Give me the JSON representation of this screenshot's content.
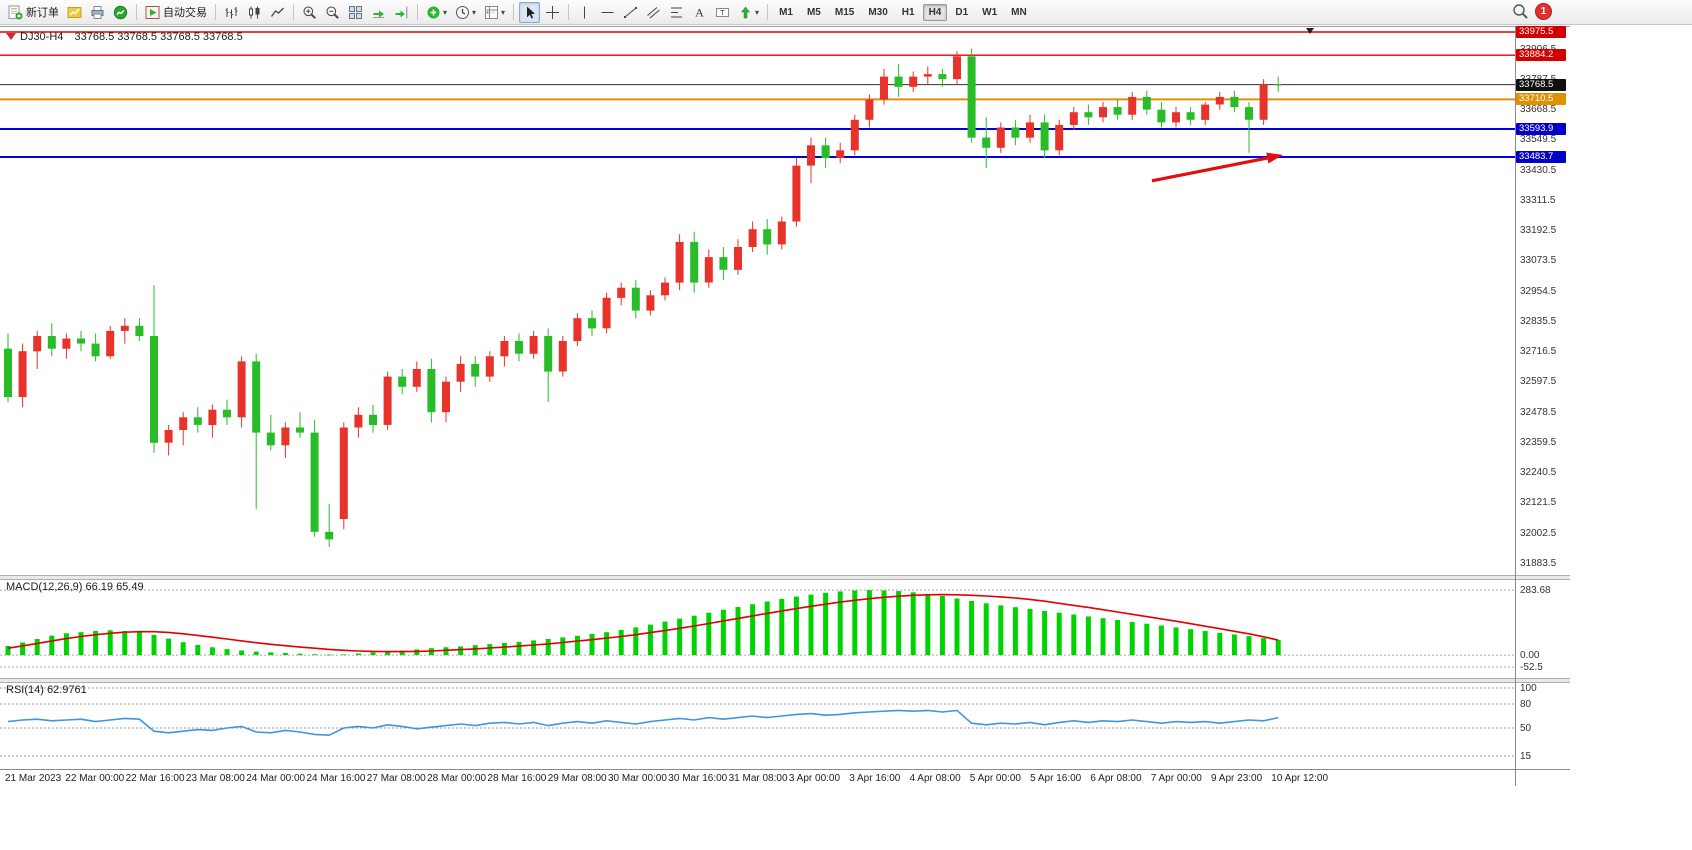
{
  "toolbar": {
    "new_order_label": "新订单",
    "autotrading_label": "自动交易",
    "timeframes": [
      "M1",
      "M5",
      "M15",
      "M30",
      "H1",
      "H4",
      "D1",
      "W1",
      "MN"
    ],
    "active_timeframe": "H4",
    "notification_count": "1"
  },
  "chart_header": {
    "symbol": "DJ30-H4",
    "ohlc": "33768.5 33768.5 33768.5 33768.5"
  },
  "price_axis": {
    "scale_labels": [
      "33906.5",
      "33787.5",
      "33668.5",
      "33549.5",
      "33430.5",
      "33311.5",
      "33192.5",
      "33073.5",
      "32954.5",
      "32835.5",
      "32716.5",
      "32597.5",
      "32478.5",
      "32359.5",
      "32240.5",
      "32121.5",
      "32002.5",
      "31883.5"
    ],
    "tagged_labels": [
      {
        "text": "33975.5",
        "bg": "#d40000"
      },
      {
        "text": "33884.2",
        "bg": "#d40000"
      },
      {
        "text": "33768.5",
        "bg": "#101010"
      },
      {
        "text": "33710.5",
        "bg": "#e09000"
      },
      {
        "text": "33593.9",
        "bg": "#0000c8"
      },
      {
        "text": "33483.7",
        "bg": "#0000c8"
      }
    ]
  },
  "macd_panel": {
    "label": "MACD(12,26,9)",
    "values": "66.19 65.49",
    "scale_labels": [
      "283.68",
      "0.00",
      "-52.5"
    ]
  },
  "rsi_panel": {
    "label": "RSI(14)",
    "value": "62.9761",
    "scale_labels": [
      "100",
      "80",
      "50",
      "15"
    ]
  },
  "time_axis": [
    "21 Mar 2023",
    "22 Mar 00:00",
    "22 Mar 16:00",
    "23 Mar 08:00",
    "24 Mar 00:00",
    "24 Mar 16:00",
    "27 Mar 08:00",
    "28 Mar 00:00",
    "28 Mar 16:00",
    "29 Mar 08:00",
    "30 Mar 00:00",
    "30 Mar 16:00",
    "31 Mar 08:00",
    "3 Apr 00:00",
    "3 Apr 16:00",
    "4 Apr 08:00",
    "5 Apr 00:00",
    "5 Apr 16:00",
    "6 Apr 08:00",
    "7 Apr 00:00",
    "9 Apr 23:00",
    "10 Apr 12:00"
  ],
  "chart_data": [
    {
      "type": "candlestick",
      "title": "DJ30 H4",
      "ylim": [
        31836,
        33999
      ],
      "colors": {
        "up": "#e8332a",
        "down": "#28bd28"
      },
      "hlines": [
        {
          "price": 33975.5,
          "color": "#e00000",
          "width": 1.4
        },
        {
          "price": 33884.2,
          "color": "#e00000",
          "width": 1.4
        },
        {
          "price": 33768.5,
          "color": "#303030",
          "width": 1
        },
        {
          "price": 33710.5,
          "color": "#e09000",
          "width": 2
        },
        {
          "price": 33593.9,
          "color": "#0000dd",
          "width": 2
        },
        {
          "price": 33483.7,
          "color": "#0000dd",
          "width": 2
        }
      ],
      "arrow": {
        "tail": [
          1152,
          33390
        ],
        "tip": [
          1283,
          33492
        ],
        "color": "#e01010"
      },
      "candles": [
        [
          32730,
          32790,
          32520,
          32540
        ],
        [
          32540,
          32750,
          32500,
          32720
        ],
        [
          32720,
          32800,
          32650,
          32780
        ],
        [
          32780,
          32830,
          32700,
          32730
        ],
        [
          32730,
          32790,
          32690,
          32770
        ],
        [
          32770,
          32800,
          32720,
          32750
        ],
        [
          32750,
          32790,
          32680,
          32700
        ],
        [
          32700,
          32820,
          32690,
          32800
        ],
        [
          32800,
          32850,
          32750,
          32820
        ],
        [
          32820,
          32850,
          32760,
          32780
        ],
        [
          32780,
          32980,
          32320,
          32360
        ],
        [
          32360,
          32430,
          32310,
          32410
        ],
        [
          32410,
          32480,
          32350,
          32460
        ],
        [
          32460,
          32500,
          32400,
          32430
        ],
        [
          32430,
          32510,
          32380,
          32490
        ],
        [
          32490,
          32530,
          32430,
          32460
        ],
        [
          32460,
          32700,
          32420,
          32680
        ],
        [
          32680,
          32710,
          32100,
          32400
        ],
        [
          32400,
          32470,
          32330,
          32350
        ],
        [
          32350,
          32440,
          32300,
          32420
        ],
        [
          32420,
          32480,
          32380,
          32400
        ],
        [
          32400,
          32450,
          31990,
          32010
        ],
        [
          32010,
          32120,
          31950,
          31980
        ],
        [
          32060,
          32440,
          32020,
          32420
        ],
        [
          32420,
          32500,
          32380,
          32470
        ],
        [
          32470,
          32510,
          32400,
          32430
        ],
        [
          32430,
          32640,
          32410,
          32620
        ],
        [
          32620,
          32650,
          32550,
          32580
        ],
        [
          32580,
          32680,
          32560,
          32650
        ],
        [
          32650,
          32690,
          32440,
          32480
        ],
        [
          32480,
          32620,
          32440,
          32600
        ],
        [
          32600,
          32700,
          32560,
          32670
        ],
        [
          32670,
          32700,
          32580,
          32620
        ],
        [
          32620,
          32720,
          32600,
          32700
        ],
        [
          32700,
          32780,
          32660,
          32760
        ],
        [
          32760,
          32790,
          32680,
          32710
        ],
        [
          32710,
          32800,
          32690,
          32780
        ],
        [
          32780,
          32810,
          32520,
          32640
        ],
        [
          32640,
          32780,
          32620,
          32760
        ],
        [
          32760,
          32870,
          32740,
          32850
        ],
        [
          32850,
          32880,
          32780,
          32810
        ],
        [
          32810,
          32950,
          32790,
          32930
        ],
        [
          32930,
          32990,
          32900,
          32970
        ],
        [
          32970,
          33000,
          32850,
          32880
        ],
        [
          32880,
          32960,
          32860,
          32940
        ],
        [
          32940,
          33010,
          32920,
          32990
        ],
        [
          32990,
          33180,
          32960,
          33150
        ],
        [
          33150,
          33190,
          32950,
          32990
        ],
        [
          32990,
          33120,
          32970,
          33090
        ],
        [
          33090,
          33130,
          33000,
          33040
        ],
        [
          33040,
          33160,
          33020,
          33130
        ],
        [
          33130,
          33230,
          33110,
          33200
        ],
        [
          33200,
          33240,
          33100,
          33140
        ],
        [
          33140,
          33250,
          33120,
          33230
        ],
        [
          33230,
          33480,
          33210,
          33450
        ],
        [
          33450,
          33560,
          33380,
          33530
        ],
        [
          33530,
          33560,
          33440,
          33480
        ],
        [
          33480,
          33540,
          33460,
          33510
        ],
        [
          33510,
          33650,
          33490,
          33630
        ],
        [
          33630,
          33730,
          33600,
          33710
        ],
        [
          33710,
          33830,
          33690,
          33800
        ],
        [
          33800,
          33850,
          33720,
          33760
        ],
        [
          33760,
          33820,
          33740,
          33800
        ],
        [
          33800,
          33840,
          33770,
          33810
        ],
        [
          33810,
          33830,
          33760,
          33790
        ],
        [
          33790,
          33900,
          33770,
          33880
        ],
        [
          33880,
          33910,
          33540,
          33560
        ],
        [
          33560,
          33640,
          33440,
          33520
        ],
        [
          33520,
          33620,
          33500,
          33600
        ],
        [
          33600,
          33630,
          33530,
          33560
        ],
        [
          33560,
          33650,
          33540,
          33620
        ],
        [
          33620,
          33650,
          33480,
          33510
        ],
        [
          33510,
          33630,
          33490,
          33610
        ],
        [
          33610,
          33680,
          33590,
          33660
        ],
        [
          33660,
          33690,
          33610,
          33640
        ],
        [
          33640,
          33700,
          33620,
          33680
        ],
        [
          33680,
          33710,
          33630,
          33650
        ],
        [
          33650,
          33740,
          33630,
          33720
        ],
        [
          33720,
          33745,
          33650,
          33670
        ],
        [
          33670,
          33700,
          33600,
          33620
        ],
        [
          33620,
          33680,
          33600,
          33660
        ],
        [
          33660,
          33680,
          33610,
          33630
        ],
        [
          33630,
          33700,
          33610,
          33690
        ],
        [
          33690,
          33740,
          33670,
          33720
        ],
        [
          33720,
          33745,
          33660,
          33680
        ],
        [
          33680,
          33700,
          33500,
          33630
        ],
        [
          33630,
          33790,
          33610,
          33770
        ],
        [
          33770,
          33800,
          33740,
          33768.5
        ]
      ]
    },
    {
      "type": "bar",
      "name": "MACD",
      "ylim": [
        -100,
        332
      ],
      "levels": [
        283.68,
        0,
        -52.5
      ],
      "bar_color": "#00d400",
      "signal_color": "#e00000",
      "values": [
        40,
        55,
        70,
        85,
        95,
        100,
        105,
        108,
        105,
        100,
        88,
        72,
        56,
        44,
        34,
        26,
        20,
        15,
        12,
        9,
        6,
        4,
        2,
        3,
        7,
        12,
        16,
        20,
        25,
        30,
        34,
        38,
        43,
        48,
        53,
        58,
        64,
        70,
        77,
        84,
        92,
        100,
        110,
        121,
        133,
        146,
        159,
        172,
        185,
        198,
        210,
        222,
        234,
        245,
        255,
        264,
        272,
        278,
        282,
        283.68,
        282,
        279,
        274,
        267,
        258,
        247,
        236,
        226,
        217,
        209,
        201,
        193,
        185,
        177,
        169,
        161,
        153,
        145,
        137,
        129,
        121,
        113,
        105,
        97,
        90,
        83,
        74,
        66.19
      ],
      "signal": [
        30,
        40,
        51,
        62,
        72,
        81,
        89,
        95,
        100,
        102,
        102,
        99,
        93,
        86,
        78,
        70,
        62,
        54,
        47,
        41,
        35,
        30,
        25,
        21,
        18,
        16,
        15,
        15,
        16,
        18,
        21,
        24,
        27,
        31,
        35,
        39,
        44,
        49,
        55,
        61,
        67,
        74,
        81,
        89,
        98,
        107,
        117,
        127,
        138,
        149,
        160,
        171,
        182,
        193,
        203,
        213,
        222,
        231,
        239,
        246,
        252,
        257,
        261,
        263,
        264,
        263,
        261,
        258,
        254,
        249,
        243,
        235,
        226,
        217,
        208,
        198,
        188,
        178,
        168,
        158,
        148,
        137,
        126,
        115,
        104,
        93,
        80,
        65.49
      ]
    },
    {
      "type": "line",
      "name": "RSI",
      "ylim": [
        0,
        107.5
      ],
      "levels": [
        100,
        80,
        50,
        15
      ],
      "line_color": "#3d97de",
      "values": [
        58,
        60,
        61,
        59,
        60,
        61,
        58,
        60,
        62,
        61,
        46,
        44,
        46,
        48,
        47,
        50,
        52,
        45,
        44,
        47,
        45,
        42,
        41,
        50,
        52,
        50,
        54,
        52,
        49,
        51,
        53,
        55,
        53,
        56,
        57,
        55,
        57,
        53,
        56,
        58,
        56,
        59,
        57,
        55,
        58,
        60,
        62,
        60,
        63,
        61,
        63,
        65,
        63,
        65,
        67,
        68,
        66,
        67,
        69,
        70,
        71,
        72,
        71,
        72,
        70,
        72,
        56,
        54,
        56,
        55,
        57,
        54,
        57,
        59,
        57,
        59,
        58,
        60,
        58,
        56,
        58,
        57,
        58,
        56,
        58,
        60,
        59,
        62.98
      ]
    }
  ]
}
